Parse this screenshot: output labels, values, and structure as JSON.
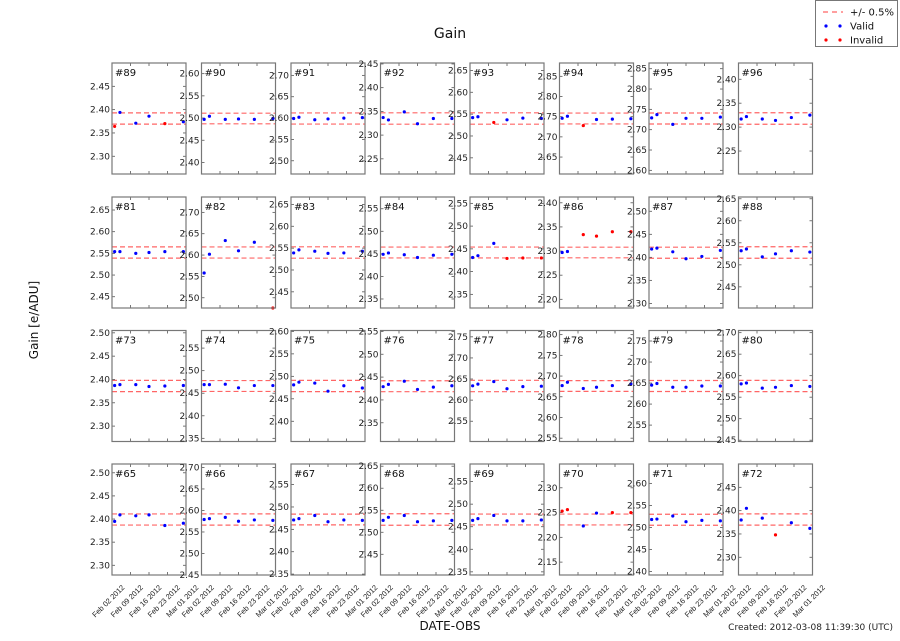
{
  "chart_data": {
    "type": "scatter",
    "title": "Gain",
    "xlabel": "DATE-OBS",
    "ylabel": "Gain [e/ADU]",
    "footer": "Created: 2012-03-08 11:39:30 (UTC)",
    "legend": {
      "placement": "top-right",
      "entries": [
        {
          "label": "+/- 0.5%",
          "style": "dashed-line",
          "color": "#ff6666"
        },
        {
          "label": "Valid",
          "style": "dots",
          "color": "#0000ff"
        },
        {
          "label": "Invalid",
          "style": "dots",
          "color": "#ff0000"
        }
      ]
    },
    "colors": {
      "valid": "#0000ff",
      "invalid": "#ff0000",
      "band": "#ff6666"
    },
    "xlim": [
      "2012-02-02",
      "2012-03-01"
    ],
    "xticks": [
      "2012-02-02",
      "2012-02-09",
      "2012-02-16",
      "2012-02-23",
      "2012-03-01"
    ],
    "xtick_labels": [
      "Feb 02 2012",
      "Feb 09 2012",
      "Feb 16 2012",
      "Feb 23 2012",
      "Mar 01 2012"
    ],
    "x": [
      "2012-02-03",
      "2012-02-05",
      "2012-02-11",
      "2012-02-16",
      "2012-02-22",
      "2012-02-29"
    ],
    "panels": [
      {
        "label": "#89",
        "ylim": [
          2.262,
          2.5
        ],
        "band": [
          2.369,
          2.393
        ],
        "yticks": [
          "2.30",
          "2.35",
          "2.40",
          "2.45"
        ],
        "values": [
          2.364,
          2.394,
          2.371,
          2.386,
          2.37,
          2.374
        ],
        "valid": [
          false,
          true,
          true,
          true,
          false,
          true
        ]
      },
      {
        "label": "#90",
        "ylim": [
          2.374,
          2.624
        ],
        "band": [
          2.487,
          2.511
        ],
        "yticks": [
          "2.40",
          "2.45",
          "2.50",
          "2.55",
          "2.60"
        ],
        "values": [
          2.497,
          2.504,
          2.497,
          2.498,
          2.497,
          2.499
        ],
        "valid": [
          true,
          true,
          true,
          true,
          true,
          true
        ]
      },
      {
        "label": "#91",
        "ylim": [
          2.469,
          2.729
        ],
        "band": [
          2.586,
          2.612
        ],
        "yticks": [
          "2.50",
          "2.55",
          "2.60",
          "2.65",
          "2.70"
        ],
        "values": [
          2.599,
          2.602,
          2.596,
          2.598,
          2.6,
          2.601
        ],
        "valid": [
          true,
          true,
          true,
          true,
          true,
          true
        ]
      },
      {
        "label": "#92",
        "ylim": [
          2.218,
          2.452
        ],
        "band": [
          2.323,
          2.347
        ],
        "yticks": [
          "2.25",
          "2.30",
          "2.35",
          "2.40",
          "2.45"
        ],
        "values": [
          2.337,
          2.332,
          2.349,
          2.324,
          2.335,
          2.335
        ],
        "valid": [
          true,
          true,
          true,
          true,
          true,
          true
        ]
      },
      {
        "label": "#93",
        "ylim": [
          2.413,
          2.667
        ],
        "band": [
          2.527,
          2.553
        ],
        "yticks": [
          "2.45",
          "2.50",
          "2.55",
          "2.60",
          "2.65"
        ],
        "values": [
          2.542,
          2.544,
          2.531,
          2.537,
          2.541,
          2.54
        ],
        "valid": [
          true,
          true,
          false,
          true,
          true,
          true
        ]
      },
      {
        "label": "#94",
        "ylim": [
          2.608,
          2.883
        ],
        "band": [
          2.732,
          2.759
        ],
        "yticks": [
          "2.65",
          "2.70",
          "2.75",
          "2.80",
          "2.85"
        ],
        "values": [
          2.746,
          2.751,
          2.728,
          2.743,
          2.744,
          2.745
        ],
        "valid": [
          true,
          true,
          false,
          true,
          true,
          true
        ]
      },
      {
        "label": "#95",
        "ylim": [
          2.591,
          2.864
        ],
        "band": [
          2.714,
          2.741
        ],
        "yticks": [
          "2.60",
          "2.65",
          "2.70",
          "2.75",
          "2.80",
          "2.85"
        ],
        "values": [
          2.729,
          2.737,
          2.713,
          2.728,
          2.728,
          2.731
        ],
        "valid": [
          true,
          true,
          true,
          true,
          true,
          true
        ]
      },
      {
        "label": "#96",
        "ylim": [
          2.202,
          2.434
        ],
        "band": [
          2.306,
          2.33
        ],
        "yticks": [
          "2.25",
          "2.30",
          "2.35",
          "2.40"
        ],
        "values": [
          2.317,
          2.322,
          2.317,
          2.314,
          2.32,
          2.325
        ],
        "valid": [
          true,
          true,
          true,
          true,
          true,
          true
        ]
      },
      {
        "label": "#81",
        "ylim": [
          2.424,
          2.68
        ],
        "band": [
          2.539,
          2.565
        ],
        "yticks": [
          "2.45",
          "2.50",
          "2.55",
          "2.60",
          "2.65"
        ],
        "values": [
          2.554,
          2.554,
          2.55,
          2.552,
          2.554,
          2.554
        ],
        "valid": [
          true,
          true,
          true,
          true,
          true,
          true
        ]
      },
      {
        "label": "#82",
        "ylim": [
          2.476,
          2.736
        ],
        "band": [
          2.593,
          2.619
        ],
        "yticks": [
          "2.50",
          "2.55",
          "2.60",
          "2.65",
          "2.70"
        ],
        "values": [
          2.558,
          2.602,
          2.634,
          2.61,
          2.63,
          2.476
        ],
        "valid": [
          true,
          true,
          true,
          true,
          true,
          false
        ]
      },
      {
        "label": "#83",
        "ylim": [
          2.413,
          2.667
        ],
        "band": [
          2.527,
          2.553
        ],
        "yticks": [
          "2.45",
          "2.50",
          "2.55",
          "2.60",
          "2.65"
        ],
        "values": [
          2.539,
          2.546,
          2.543,
          2.538,
          2.539,
          2.543
        ],
        "valid": [
          true,
          true,
          true,
          true,
          true,
          true
        ]
      },
      {
        "label": "#84",
        "ylim": [
          2.33,
          2.576
        ],
        "band": [
          2.441,
          2.465
        ],
        "yticks": [
          "2.35",
          "2.40",
          "2.45",
          "2.50",
          "2.55"
        ],
        "values": [
          2.449,
          2.452,
          2.448,
          2.442,
          2.447,
          2.449
        ],
        "valid": [
          true,
          true,
          true,
          true,
          true,
          true
        ]
      },
      {
        "label": "#85",
        "ylim": [
          2.32,
          2.564
        ],
        "band": [
          2.43,
          2.454
        ],
        "yticks": [
          "2.35",
          "2.40",
          "2.45",
          "2.50",
          "2.55"
        ],
        "values": [
          2.431,
          2.435,
          2.462,
          2.429,
          2.43,
          2.43
        ],
        "valid": [
          true,
          true,
          true,
          false,
          false,
          false
        ]
      },
      {
        "label": "#86",
        "ylim": [
          2.182,
          2.412
        ],
        "band": [
          2.286,
          2.308
        ],
        "yticks": [
          "2.20",
          "2.25",
          "2.30",
          "2.35",
          "2.40"
        ],
        "values": [
          2.297,
          2.299,
          2.334,
          2.331,
          2.34,
          2.34
        ],
        "valid": [
          true,
          true,
          false,
          false,
          false,
          false
        ]
      },
      {
        "label": "#87",
        "ylim": [
          2.29,
          2.531
        ],
        "band": [
          2.398,
          2.422
        ],
        "yticks": [
          "2.30",
          "2.35",
          "2.40",
          "2.45",
          "2.50"
        ],
        "values": [
          2.418,
          2.42,
          2.412,
          2.397,
          2.402,
          2.415
        ],
        "valid": [
          true,
          true,
          true,
          true,
          true,
          true
        ]
      },
      {
        "label": "#88",
        "ylim": [
          2.402,
          2.654
        ],
        "band": [
          2.515,
          2.541
        ],
        "yticks": [
          "2.45",
          "2.50",
          "2.55",
          "2.60",
          "2.65"
        ],
        "values": [
          2.532,
          2.536,
          2.518,
          2.525,
          2.532,
          2.529
        ],
        "valid": [
          true,
          true,
          true,
          true,
          true,
          true
        ]
      },
      {
        "label": "#73",
        "ylim": [
          2.267,
          2.505
        ],
        "band": [
          2.374,
          2.398
        ],
        "yticks": [
          "2.30",
          "2.35",
          "2.40",
          "2.45",
          "2.50"
        ],
        "values": [
          2.387,
          2.389,
          2.389,
          2.385,
          2.386,
          2.387
        ],
        "valid": [
          true,
          true,
          true,
          true,
          true,
          true
        ]
      },
      {
        "label": "#74",
        "ylim": [
          2.343,
          2.589
        ],
        "band": [
          2.454,
          2.478
        ],
        "yticks": [
          "2.35",
          "2.40",
          "2.45",
          "2.50",
          "2.55"
        ],
        "values": [
          2.469,
          2.469,
          2.47,
          2.462,
          2.467,
          2.467
        ],
        "valid": [
          true,
          true,
          true,
          true,
          true,
          true
        ]
      },
      {
        "label": "#75",
        "ylim": [
          2.355,
          2.602
        ],
        "band": [
          2.466,
          2.491
        ],
        "yticks": [
          "2.40",
          "2.45",
          "2.50",
          "2.55",
          "2.60"
        ],
        "values": [
          2.481,
          2.487,
          2.485,
          2.467,
          2.479,
          2.474
        ],
        "valid": [
          true,
          true,
          true,
          true,
          true,
          true
        ]
      },
      {
        "label": "#76",
        "ylim": [
          2.309,
          2.552
        ],
        "band": [
          2.418,
          2.442
        ],
        "yticks": [
          "2.35",
          "2.40",
          "2.45",
          "2.50",
          "2.55"
        ],
        "values": [
          2.429,
          2.434,
          2.441,
          2.423,
          2.428,
          2.431
        ],
        "valid": [
          true,
          true,
          true,
          true,
          true,
          true
        ]
      },
      {
        "label": "#77",
        "ylim": [
          2.502,
          2.765
        ],
        "band": [
          2.62,
          2.647
        ],
        "yticks": [
          "2.55",
          "2.60",
          "2.65",
          "2.70",
          "2.75"
        ],
        "values": [
          2.634,
          2.638,
          2.644,
          2.627,
          2.632,
          2.633
        ],
        "valid": [
          true,
          true,
          true,
          true,
          true,
          true
        ]
      },
      {
        "label": "#78",
        "ylim": [
          2.542,
          2.81
        ],
        "band": [
          2.663,
          2.689
        ],
        "yticks": [
          "2.55",
          "2.60",
          "2.65",
          "2.70",
          "2.75",
          "2.80"
        ],
        "values": [
          2.677,
          2.685,
          2.67,
          2.673,
          2.677,
          2.681
        ],
        "valid": [
          true,
          true,
          true,
          true,
          true,
          true
        ]
      },
      {
        "label": "#79",
        "ylim": [
          2.511,
          2.775
        ],
        "band": [
          2.63,
          2.656
        ],
        "yticks": [
          "2.55",
          "2.60",
          "2.65",
          "2.70",
          "2.75"
        ],
        "values": [
          2.645,
          2.649,
          2.64,
          2.64,
          2.643,
          2.643
        ],
        "valid": [
          true,
          true,
          true,
          true,
          true,
          true
        ]
      },
      {
        "label": "#80",
        "ylim": [
          2.447,
          2.705
        ],
        "band": [
          2.563,
          2.589
        ],
        "yticks": [
          "2.45",
          "2.50",
          "2.55",
          "2.60",
          "2.65",
          "2.70"
        ],
        "values": [
          2.581,
          2.583,
          2.571,
          2.573,
          2.577,
          2.575
        ],
        "valid": [
          true,
          true,
          true,
          true,
          true,
          true
        ]
      },
      {
        "label": "#65",
        "ylim": [
          2.279,
          2.519
        ],
        "band": [
          2.387,
          2.411
        ],
        "yticks": [
          "2.30",
          "2.35",
          "2.40",
          "2.45",
          "2.50"
        ],
        "values": [
          2.395,
          2.409,
          2.407,
          2.409,
          2.386,
          2.391
        ],
        "valid": [
          true,
          true,
          true,
          true,
          true,
          true
        ]
      },
      {
        "label": "#66",
        "ylim": [
          2.45,
          2.708
        ],
        "band": [
          2.566,
          2.592
        ],
        "yticks": [
          "2.45",
          "2.50",
          "2.55",
          "2.60",
          "2.65",
          "2.70"
        ],
        "values": [
          2.579,
          2.581,
          2.584,
          2.575,
          2.578,
          2.577
        ],
        "valid": [
          true,
          true,
          true,
          true,
          true,
          true
        ]
      },
      {
        "label": "#67",
        "ylim": [
          2.348,
          2.596
        ],
        "band": [
          2.46,
          2.484
        ],
        "yticks": [
          "2.35",
          "2.40",
          "2.45",
          "2.50",
          "2.55"
        ],
        "values": [
          2.471,
          2.474,
          2.481,
          2.467,
          2.471,
          2.47
        ],
        "valid": [
          true,
          true,
          true,
          true,
          true,
          true
        ]
      },
      {
        "label": "#68",
        "ylim": [
          2.403,
          2.655
        ],
        "band": [
          2.516,
          2.542
        ],
        "yticks": [
          "2.45",
          "2.50",
          "2.55",
          "2.60",
          "2.65"
        ],
        "values": [
          2.527,
          2.534,
          2.538,
          2.524,
          2.526,
          2.527
        ],
        "valid": [
          true,
          true,
          true,
          true,
          true,
          true
        ]
      },
      {
        "label": "#69",
        "ylim": [
          2.343,
          2.589
        ],
        "band": [
          2.454,
          2.478
        ],
        "yticks": [
          "2.35",
          "2.40",
          "2.45",
          "2.50",
          "2.55"
        ],
        "values": [
          2.464,
          2.468,
          2.475,
          2.463,
          2.463,
          2.465
        ],
        "valid": [
          true,
          true,
          true,
          true,
          true,
          true
        ]
      },
      {
        "label": "#70",
        "ylim": [
          2.124,
          2.348
        ],
        "band": [
          2.225,
          2.247
        ],
        "yticks": [
          "2.15",
          "2.20",
          "2.25",
          "2.30"
        ],
        "values": [
          2.253,
          2.256,
          2.223,
          2.249,
          2.25,
          2.25
        ],
        "valid": [
          false,
          false,
          true,
          true,
          false,
          false
        ]
      },
      {
        "label": "#71",
        "ylim": [
          2.392,
          2.644
        ],
        "band": [
          2.505,
          2.53
        ],
        "yticks": [
          "2.40",
          "2.45",
          "2.50",
          "2.55",
          "2.60"
        ],
        "values": [
          2.518,
          2.519,
          2.526,
          2.513,
          2.516,
          2.515
        ],
        "valid": [
          true,
          true,
          true,
          true,
          true,
          true
        ]
      },
      {
        "label": "#72",
        "ylim": [
          2.262,
          2.5
        ],
        "band": [
          2.369,
          2.393
        ],
        "yticks": [
          "2.30",
          "2.35",
          "2.40",
          "2.45"
        ],
        "values": [
          2.38,
          2.405,
          2.384,
          2.348,
          2.374,
          2.362
        ],
        "valid": [
          true,
          true,
          true,
          false,
          true,
          true
        ]
      }
    ]
  }
}
